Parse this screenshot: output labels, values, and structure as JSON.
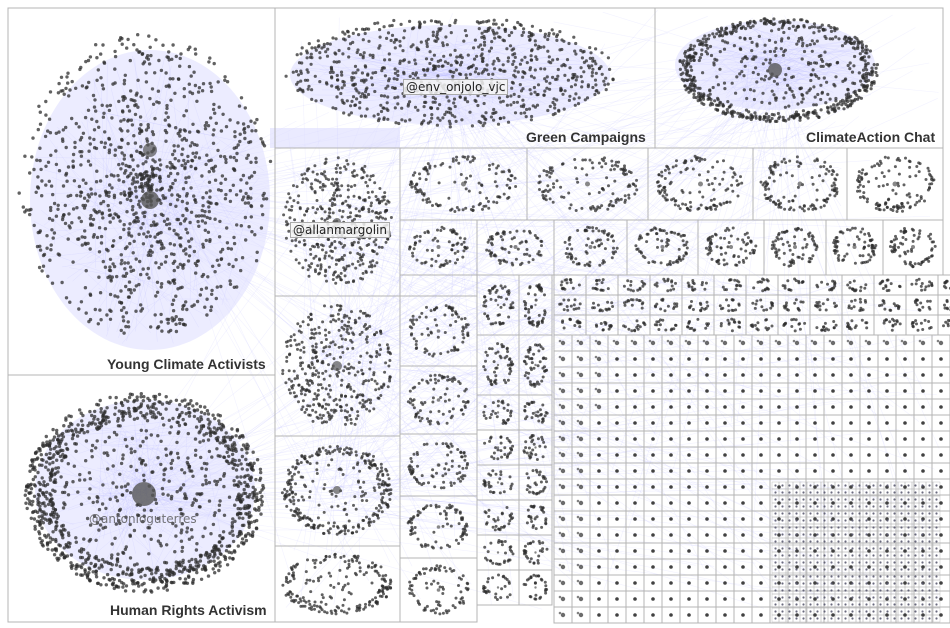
{
  "groups": [
    {
      "label": "Young Climate Activists"
    },
    {
      "label": "Human Rights Activism"
    },
    {
      "label": "Green Campaigns"
    },
    {
      "label": "ClimateAction Chat"
    }
  ],
  "node_labels": [
    {
      "text": "@env_onjolo_vjc"
    },
    {
      "text": "@allanmargolin"
    },
    {
      "text": "@antonioguterres"
    }
  ],
  "colors": {
    "edge": "#b8b8ff",
    "edge_fill": "#dcdcff",
    "node": "#2e2e2e",
    "hub": "#555555",
    "border": "#b4b4b4",
    "label": "#333333"
  }
}
